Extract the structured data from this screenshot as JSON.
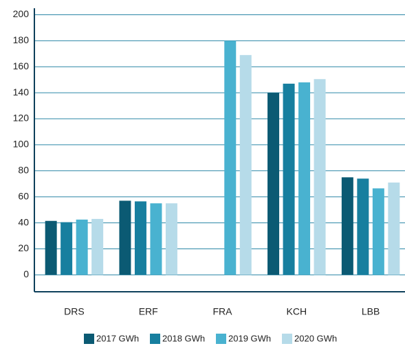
{
  "chart_data": {
    "type": "bar",
    "categories": [
      "DRS",
      "ERF",
      "FRA",
      "KCH",
      "LBB"
    ],
    "series": [
      {
        "name": "2017 GWh",
        "color": "#0b5a73",
        "values": [
          41.5,
          57,
          null,
          140,
          75
        ]
      },
      {
        "name": "2018 GWh",
        "color": "#177f9f",
        "values": [
          40.5,
          56.5,
          null,
          147,
          74
        ]
      },
      {
        "name": "2019 GWh",
        "color": "#49b2d0",
        "values": [
          42.5,
          55,
          180,
          148,
          66.5
        ]
      },
      {
        "name": "2020 GWh",
        "color": "#b6dbe9",
        "values": [
          43,
          55,
          169,
          150.5,
          71
        ]
      }
    ],
    "ylim": [
      -13,
      205
    ],
    "yticks": [
      0,
      20,
      40,
      60,
      80,
      100,
      120,
      140,
      160,
      180,
      200
    ],
    "grid": true
  }
}
